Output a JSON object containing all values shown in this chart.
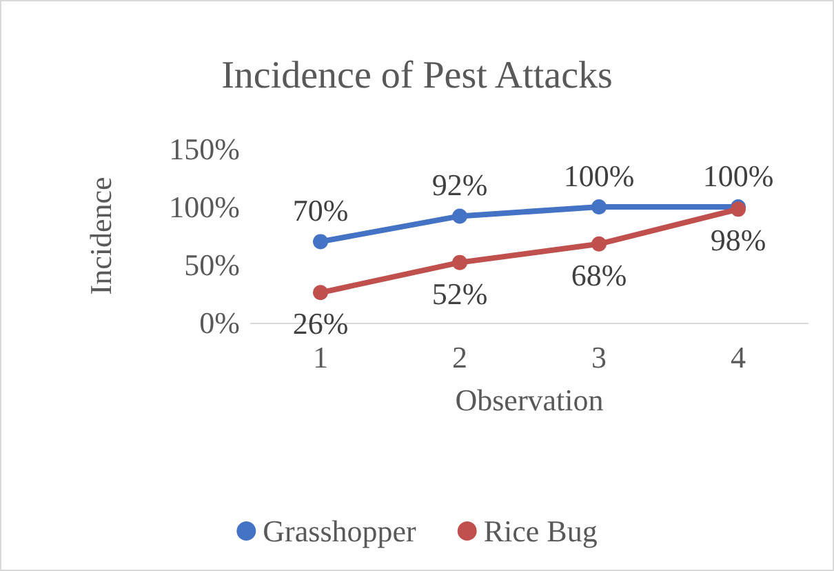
{
  "chart_data": {
    "type": "line",
    "title": "Incidence of Pest Attacks",
    "xlabel": "Observation",
    "ylabel": "Incidence",
    "categories": [
      "1",
      "2",
      "3",
      "4"
    ],
    "series": [
      {
        "name": "Grasshopper",
        "color": "#4472c4",
        "values": [
          70,
          92,
          100,
          100
        ],
        "value_labels": [
          "70%",
          "92%",
          "100%",
          "100%"
        ]
      },
      {
        "name": "Rice Bug",
        "color": "#c0504d",
        "values": [
          26,
          52,
          68,
          98
        ],
        "value_labels": [
          "26%",
          "52%",
          "68%",
          "98%"
        ]
      }
    ],
    "ylim": [
      0,
      150
    ],
    "yticks": [
      {
        "value": 0,
        "label": "0%"
      },
      {
        "value": 50,
        "label": "50%"
      },
      {
        "value": 100,
        "label": "100%"
      },
      {
        "value": 150,
        "label": "150%"
      }
    ],
    "legend": "bottom",
    "marker": "circle"
  }
}
